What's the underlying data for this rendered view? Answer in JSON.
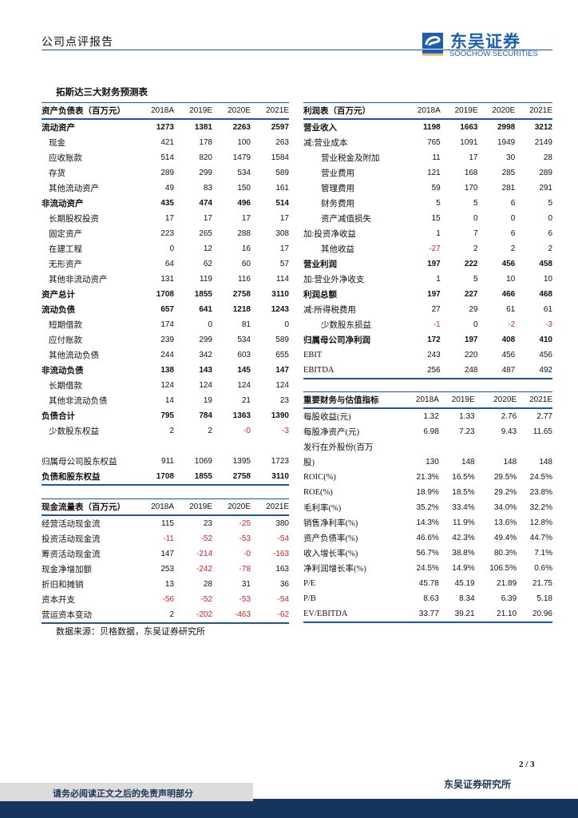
{
  "header": {
    "report_type": "公司点评报告",
    "logo_cn": "东吴证券",
    "logo_en": "SOOCHOW SECURITIES",
    "logo_mark": "SCS",
    "brand_color": "#1a5fb4"
  },
  "table_title": "拓斯达三大财务预测表",
  "years": [
    "2018A",
    "2019E",
    "2020E",
    "2021E"
  ],
  "balance": {
    "title": "资产负债表（百万元）",
    "rows": [
      {
        "label": "流动资产",
        "v": [
          "1273",
          "1381",
          "2263",
          "2597"
        ],
        "b": true
      },
      {
        "label": "现金",
        "v": [
          "421",
          "178",
          "100",
          "263"
        ],
        "i": 1
      },
      {
        "label": "应收账款",
        "v": [
          "514",
          "820",
          "1479",
          "1584"
        ],
        "i": 1
      },
      {
        "label": "存货",
        "v": [
          "289",
          "299",
          "534",
          "589"
        ],
        "i": 1
      },
      {
        "label": "其他流动资产",
        "v": [
          "49",
          "83",
          "150",
          "161"
        ],
        "i": 1
      },
      {
        "label": "非流动资产",
        "v": [
          "435",
          "474",
          "496",
          "514"
        ],
        "b": true
      },
      {
        "label": "长期股权投资",
        "v": [
          "17",
          "17",
          "17",
          "17"
        ],
        "i": 1
      },
      {
        "label": "固定资产",
        "v": [
          "223",
          "265",
          "288",
          "308"
        ],
        "i": 1
      },
      {
        "label": "在建工程",
        "v": [
          "0",
          "12",
          "16",
          "17"
        ],
        "i": 1
      },
      {
        "label": "无形资产",
        "v": [
          "64",
          "62",
          "60",
          "57"
        ],
        "i": 1
      },
      {
        "label": "其他非流动资产",
        "v": [
          "131",
          "119",
          "116",
          "114"
        ],
        "i": 1
      },
      {
        "label": "资产总计",
        "v": [
          "1708",
          "1855",
          "2758",
          "3110"
        ],
        "b": true
      },
      {
        "label": "流动负债",
        "v": [
          "657",
          "641",
          "1218",
          "1243"
        ],
        "b": true
      },
      {
        "label": "短期借款",
        "v": [
          "174",
          "0",
          "81",
          "0"
        ],
        "i": 1
      },
      {
        "label": "应付账款",
        "v": [
          "239",
          "299",
          "534",
          "589"
        ],
        "i": 1
      },
      {
        "label": "其他流动负债",
        "v": [
          "244",
          "342",
          "603",
          "655"
        ],
        "i": 1
      },
      {
        "label": "非流动负债",
        "v": [
          "138",
          "143",
          "145",
          "147"
        ],
        "b": true
      },
      {
        "label": "长期借款",
        "v": [
          "124",
          "124",
          "124",
          "124"
        ],
        "i": 1
      },
      {
        "label": "其他非流动负债",
        "v": [
          "14",
          "19",
          "21",
          "23"
        ],
        "i": 1
      },
      {
        "label": "负债合计",
        "v": [
          "795",
          "784",
          "1363",
          "1390"
        ],
        "b": true
      },
      {
        "label": "少数股东权益",
        "v": [
          "2",
          "2",
          "-0",
          "-3"
        ],
        "i": 1
      },
      {
        "label": "",
        "v": [
          "",
          "",
          "",
          ""
        ]
      },
      {
        "label": "归属母公司股东权益",
        "v": [
          "911",
          "1069",
          "1395",
          "1723"
        ]
      },
      {
        "label": "负债和股东权益",
        "v": [
          "1708",
          "1855",
          "2758",
          "3110"
        ],
        "b": true
      }
    ]
  },
  "cashflow": {
    "title": "现金流量表（百万元）",
    "rows": [
      {
        "label": "经营活动现金流",
        "v": [
          "115",
          "23",
          "-25",
          "380"
        ]
      },
      {
        "label": "投资活动现金流",
        "v": [
          "-11",
          "-52",
          "-53",
          "-54"
        ]
      },
      {
        "label": "筹资活动现金流",
        "v": [
          "147",
          "-214",
          "-0",
          "-163"
        ]
      },
      {
        "label": "现金净增加额",
        "v": [
          "253",
          "-242",
          "-78",
          "163"
        ]
      },
      {
        "label": "折旧和摊销",
        "v": [
          "13",
          "28",
          "31",
          "36"
        ]
      },
      {
        "label": "资本开支",
        "v": [
          "-56",
          "-52",
          "-53",
          "-54"
        ]
      },
      {
        "label": "营运资本变动",
        "v": [
          "2",
          "-202",
          "-463",
          "-62"
        ]
      }
    ]
  },
  "income": {
    "title": "利润表（百万元）",
    "rows": [
      {
        "label": "营业收入",
        "v": [
          "1198",
          "1663",
          "2998",
          "3212"
        ],
        "b": true
      },
      {
        "label": "减:营业成本",
        "v": [
          "765",
          "1091",
          "1949",
          "2149"
        ]
      },
      {
        "label": "营业税金及附加",
        "v": [
          "11",
          "17",
          "30",
          "28"
        ],
        "i": 2
      },
      {
        "label": "营业费用",
        "v": [
          "121",
          "168",
          "285",
          "289"
        ],
        "i": 2
      },
      {
        "label": "管理费用",
        "v": [
          "59",
          "170",
          "281",
          "291"
        ],
        "i": 2
      },
      {
        "label": "财务费用",
        "v": [
          "5",
          "5",
          "6",
          "5"
        ],
        "i": 2
      },
      {
        "label": "资产减值损失",
        "v": [
          "15",
          "0",
          "0",
          "0"
        ],
        "i": 2
      },
      {
        "label": "加:投资净收益",
        "v": [
          "1",
          "7",
          "6",
          "6"
        ]
      },
      {
        "label": "其他收益",
        "v": [
          "-27",
          "2",
          "2",
          "2"
        ],
        "i": 2
      },
      {
        "label": "营业利润",
        "v": [
          "197",
          "222",
          "456",
          "458"
        ],
        "b": true
      },
      {
        "label": "加:营业外净收支",
        "v": [
          "1",
          "5",
          "10",
          "10"
        ]
      },
      {
        "label": "利润总额",
        "v": [
          "197",
          "227",
          "466",
          "468"
        ],
        "b": true
      },
      {
        "label": "减:所得税费用",
        "v": [
          "27",
          "29",
          "61",
          "61"
        ]
      },
      {
        "label": "少数股东损益",
        "v": [
          "-1",
          "0",
          "-2",
          "-3"
        ],
        "i": 2
      },
      {
        "label": "归属母公司净利润",
        "v": [
          "172",
          "197",
          "408",
          "410"
        ],
        "b": true
      },
      {
        "label": "EBIT",
        "v": [
          "243",
          "220",
          "456",
          "456"
        ]
      },
      {
        "label": "EBITDA",
        "v": [
          "256",
          "248",
          "487",
          "492"
        ]
      }
    ]
  },
  "indicators": {
    "title": "重要财务与估值指标",
    "rows": [
      {
        "label": "每股收益(元)",
        "v": [
          "1.32",
          "1.33",
          "2.76",
          "2.77"
        ]
      },
      {
        "label": "每股净资产(元)",
        "v": [
          "6.98",
          "7.23",
          "9.43",
          "11.65"
        ]
      },
      {
        "label": "发行在外股份(百万",
        "v": [
          "",
          "",
          "",
          ""
        ]
      },
      {
        "label": "股)",
        "v": [
          "130",
          "148",
          "148",
          "148"
        ]
      },
      {
        "label": "ROIC(%)",
        "v": [
          "21.3%",
          "16.5%",
          "29.5%",
          "24.5%"
        ]
      },
      {
        "label": "ROE(%)",
        "v": [
          "18.9%",
          "18.5%",
          "29.2%",
          "23.8%"
        ]
      },
      {
        "label": "毛利率(%)",
        "v": [
          "35.2%",
          "33.4%",
          "34.0%",
          "32.2%"
        ]
      },
      {
        "label": "销售净利率(%)",
        "v": [
          "14.3%",
          "11.9%",
          "13.6%",
          "12.8%"
        ]
      },
      {
        "label": "资产负债率(%)",
        "v": [
          "46.6%",
          "42.3%",
          "49.4%",
          "44.7%"
        ]
      },
      {
        "label": "收入增长率(%)",
        "v": [
          "56.7%",
          "38.8%",
          "80.3%",
          "7.1%"
        ]
      },
      {
        "label": "净利润增长率(%)",
        "v": [
          "24.5%",
          "14.9%",
          "106.5%",
          "0.6%"
        ]
      },
      {
        "label": "P/E",
        "v": [
          "45.78",
          "45.19",
          "21.89",
          "21.75"
        ]
      },
      {
        "label": "P/B",
        "v": [
          "8.63",
          "8.34",
          "6.39",
          "5.18"
        ]
      },
      {
        "label": "EV/EBITDA",
        "v": [
          "33.77",
          "39.21",
          "21.10",
          "20.96"
        ]
      }
    ]
  },
  "source": "数据来源：贝格数据，东吴证券研究所",
  "footer": {
    "page": "2 / 3",
    "disclaimer": "请务必阅读正文之后的免责声明部分",
    "firm": "东吴证券研究所"
  },
  "colors": {
    "rule": "#1a56a8",
    "negative": "#e02020",
    "footer_band": "#17355c",
    "disclaimer_box": "#dcdcdc"
  }
}
